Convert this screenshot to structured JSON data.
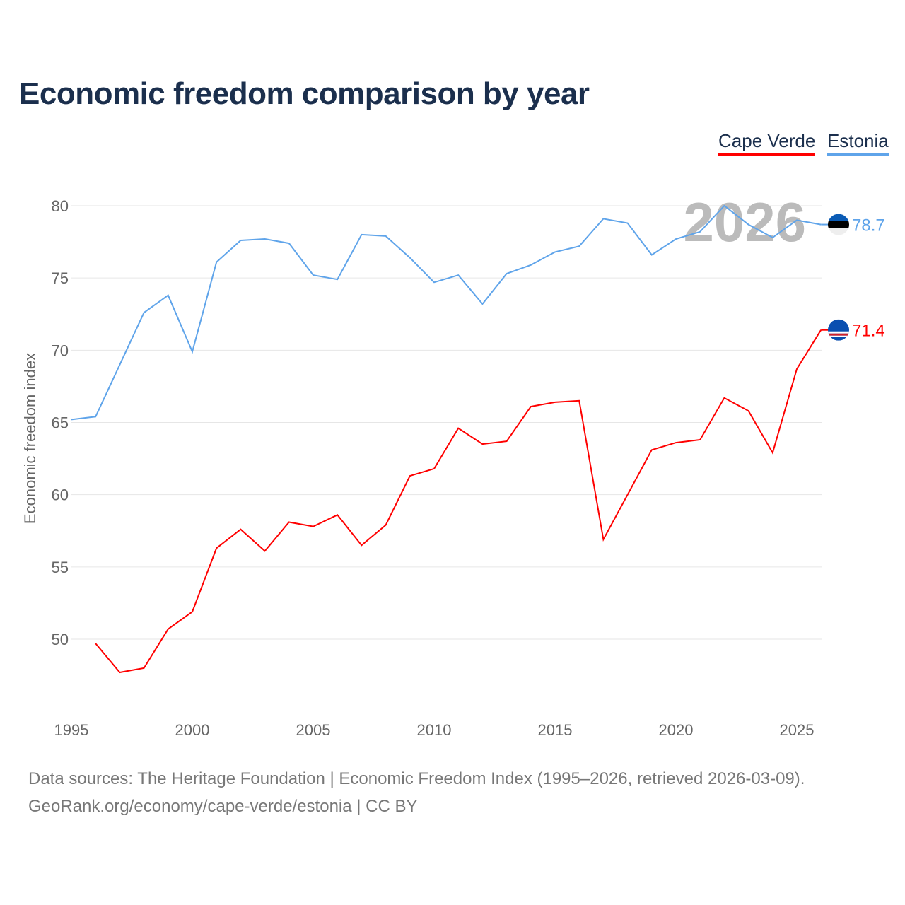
{
  "title": "Economic freedom comparison by year",
  "footer": {
    "line1": "Data sources: The Heritage Foundation | Economic Freedom Index (1995–2026, retrieved 2026-03-09).",
    "line2": "GeoRank.org/economy/cape-verde/estonia | CC BY"
  },
  "chart_data": {
    "type": "line",
    "title": "Economic freedom comparison by year",
    "xlabel": "",
    "ylabel": "Economic freedom index",
    "xlim": [
      1995,
      2026
    ],
    "ylim": [
      45,
      82
    ],
    "xticks": [
      1995,
      2000,
      2005,
      2010,
      2015,
      2020,
      2025
    ],
    "yticks": [
      50,
      55,
      60,
      65,
      70,
      75,
      80
    ],
    "grid": true,
    "legend_position": "top-right",
    "watermark_year": "2026",
    "x": [
      1995,
      1996,
      1997,
      1998,
      1999,
      2000,
      2001,
      2002,
      2003,
      2004,
      2005,
      2006,
      2007,
      2008,
      2009,
      2010,
      2011,
      2012,
      2013,
      2014,
      2015,
      2016,
      2017,
      2018,
      2019,
      2020,
      2021,
      2022,
      2023,
      2024,
      2025,
      2026
    ],
    "series": [
      {
        "name": "Cape Verde",
        "color": "#ff0000",
        "end_label": "71.4",
        "values": [
          null,
          49.7,
          47.7,
          48.0,
          50.7,
          51.9,
          56.3,
          57.6,
          56.1,
          58.1,
          57.8,
          58.6,
          56.5,
          57.9,
          61.3,
          61.8,
          64.6,
          63.5,
          63.7,
          66.1,
          66.4,
          66.5,
          56.9,
          60.0,
          63.1,
          63.6,
          63.8,
          66.7,
          65.8,
          62.9,
          68.7,
          71.4
        ]
      },
      {
        "name": "Estonia",
        "color": "#5fa4ea",
        "end_label": "78.7",
        "values": [
          65.2,
          65.4,
          69.0,
          72.6,
          73.8,
          69.9,
          76.1,
          77.6,
          77.7,
          77.4,
          75.2,
          74.9,
          78.0,
          77.9,
          76.4,
          74.7,
          75.2,
          73.2,
          75.3,
          75.9,
          76.8,
          77.2,
          79.1,
          78.8,
          76.6,
          77.7,
          78.2,
          80.0,
          78.7,
          77.8,
          79.0,
          78.7
        ]
      }
    ]
  }
}
